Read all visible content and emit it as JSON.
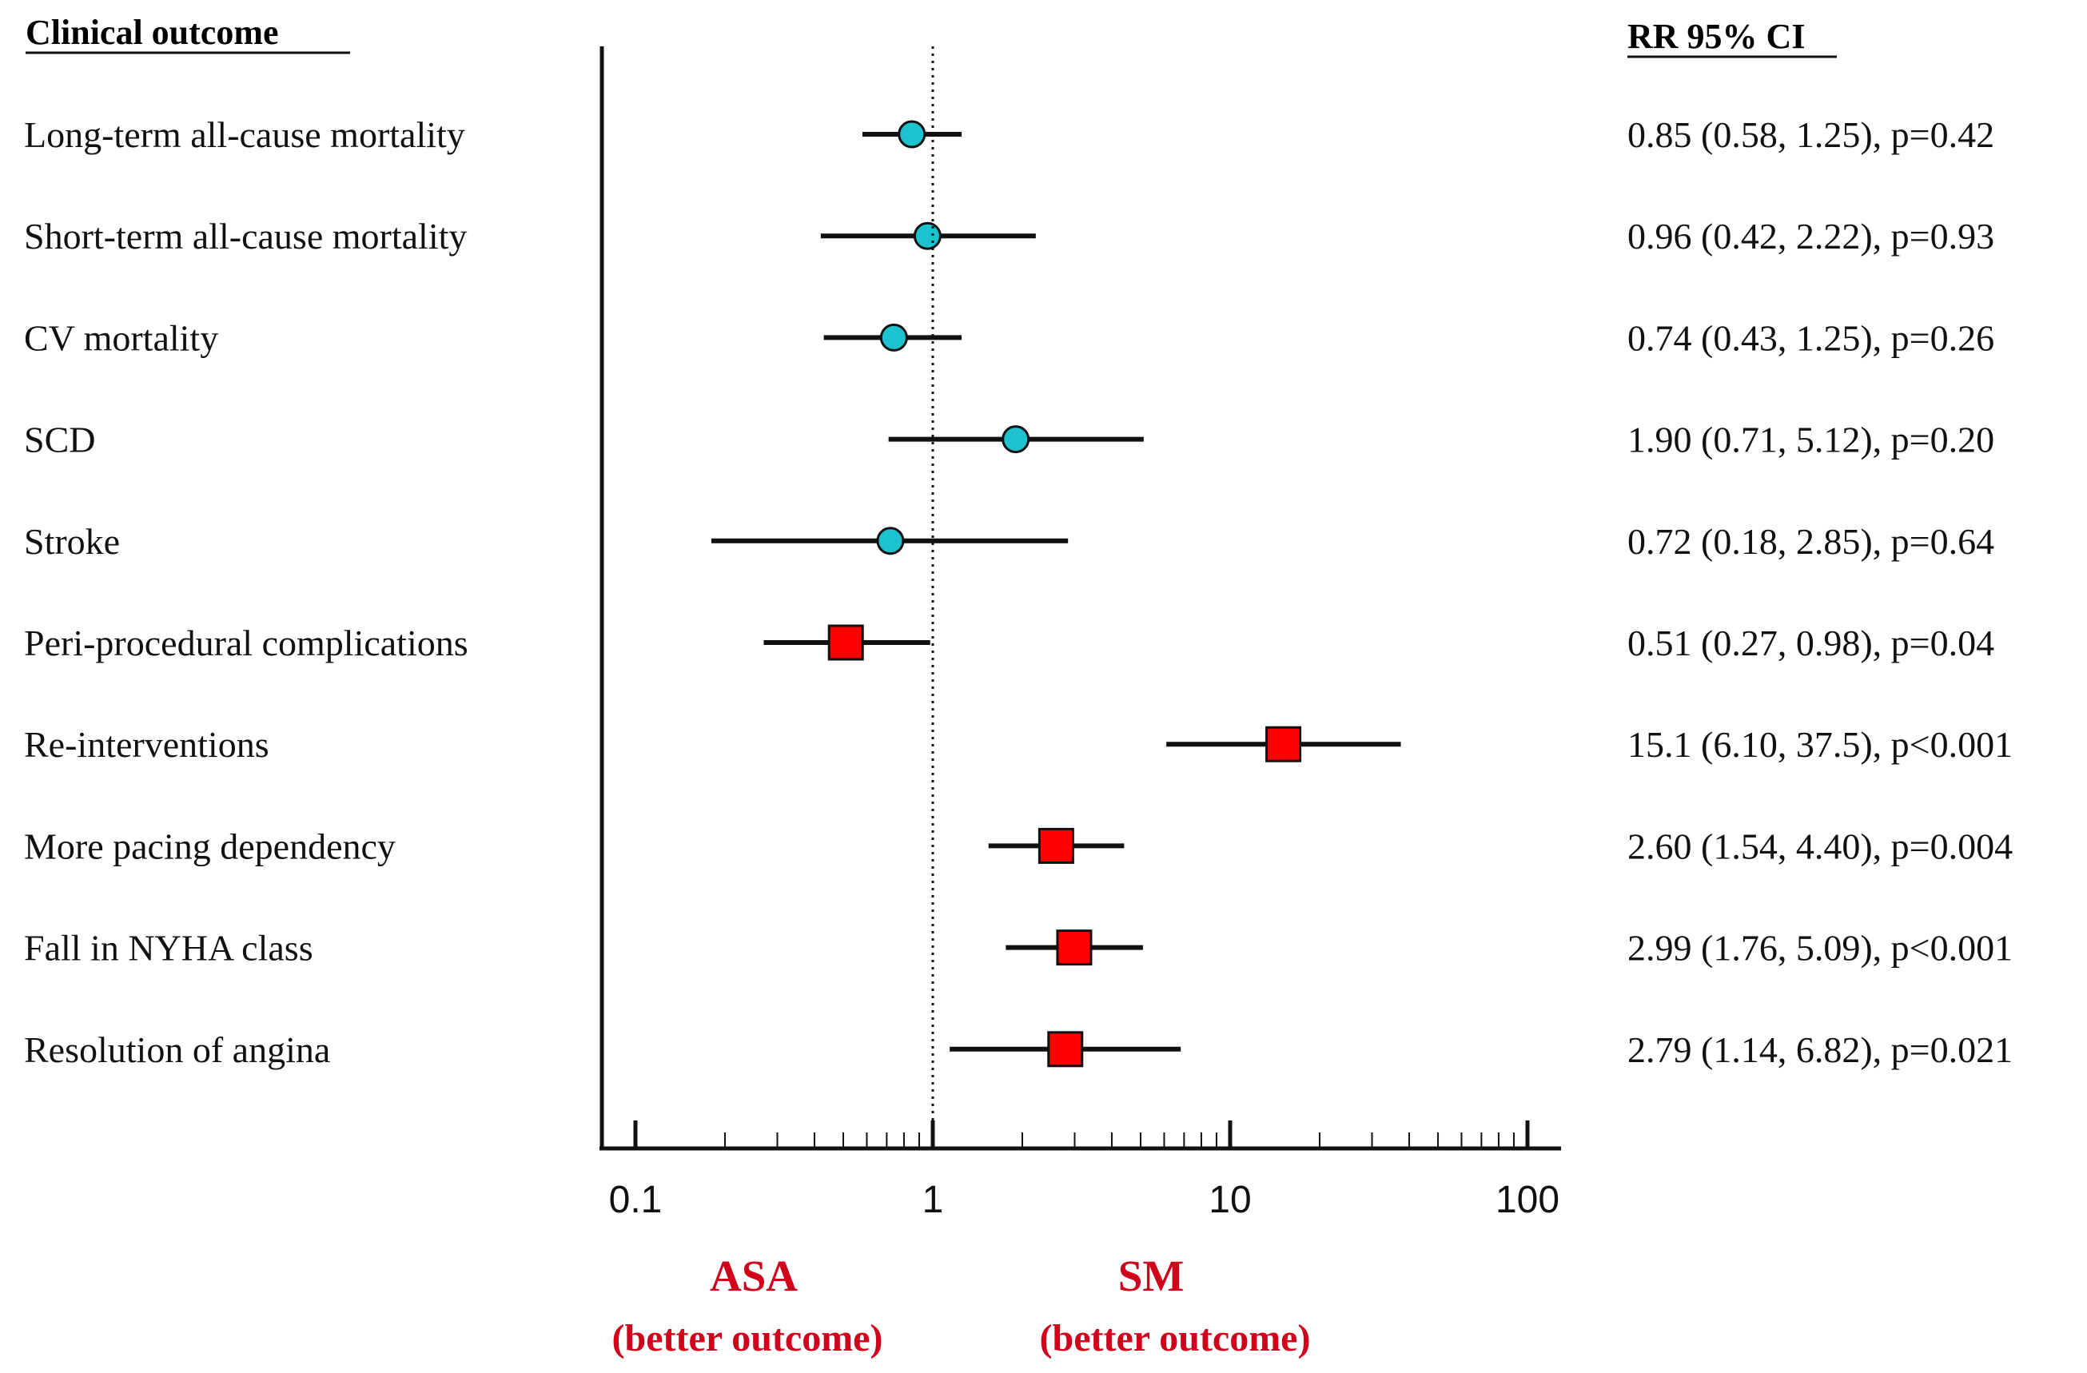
{
  "chart_data": {
    "type": "forest",
    "scale": "log",
    "xlim": [
      0.1,
      100
    ],
    "reference_line": 1,
    "outcome_header": "Clinical outcome",
    "stats_header": "RR 95% CI",
    "x_ticks": [
      {
        "value": 0.1,
        "label": "0.1"
      },
      {
        "value": 1,
        "label": "1"
      },
      {
        "value": 10,
        "label": "10"
      },
      {
        "value": 100,
        "label": "100"
      }
    ],
    "outcomes": [
      {
        "label": "Long-term all-cause mortality",
        "rr": 0.85,
        "lo": 0.58,
        "hi": 1.25,
        "marker": "circle",
        "stat_text": "0.85 (0.58, 1.25), p=0.42"
      },
      {
        "label": "Short-term all-cause mortality",
        "rr": 0.96,
        "lo": 0.42,
        "hi": 2.22,
        "marker": "circle",
        "stat_text": "0.96 (0.42, 2.22), p=0.93"
      },
      {
        "label": "CV mortality",
        "rr": 0.74,
        "lo": 0.43,
        "hi": 1.25,
        "marker": "circle",
        "stat_text": "0.74 (0.43, 1.25), p=0.26"
      },
      {
        "label": "SCD",
        "rr": 1.9,
        "lo": 0.71,
        "hi": 5.12,
        "marker": "circle",
        "stat_text": "1.90 (0.71, 5.12), p=0.20"
      },
      {
        "label": "Stroke",
        "rr": 0.72,
        "lo": 0.18,
        "hi": 2.85,
        "marker": "circle",
        "stat_text": "0.72 (0.18, 2.85), p=0.64"
      },
      {
        "label": "Peri-procedural complications",
        "rr": 0.51,
        "lo": 0.27,
        "hi": 0.98,
        "marker": "square",
        "stat_text": "0.51 (0.27, 0.98), p=0.04"
      },
      {
        "label": "Re-interventions",
        "rr": 15.1,
        "lo": 6.1,
        "hi": 37.5,
        "marker": "square",
        "stat_text": "15.1 (6.10, 37.5), p<0.001"
      },
      {
        "label": "More pacing dependency",
        "rr": 2.6,
        "lo": 1.54,
        "hi": 4.4,
        "marker": "square",
        "stat_text": "2.60 (1.54, 4.40), p=0.004"
      },
      {
        "label": "Fall in NYHA class",
        "rr": 2.99,
        "lo": 1.76,
        "hi": 5.09,
        "marker": "square",
        "stat_text": "2.99 (1.76, 5.09), p<0.001"
      },
      {
        "label": "Resolution of angina",
        "rr": 2.79,
        "lo": 1.14,
        "hi": 6.82,
        "marker": "square",
        "stat_text": "2.79 (1.14, 6.82), p=0.021"
      }
    ],
    "favours_left": {
      "title": "ASA",
      "subtitle": "(better outcome)"
    },
    "favours_right": {
      "title": "SM",
      "subtitle": "(better outcome)"
    },
    "colors": {
      "circle_fill": "#1CC3CF",
      "square_fill": "#FF0000",
      "favour_text": "#D0021B",
      "line": "#111111"
    }
  }
}
